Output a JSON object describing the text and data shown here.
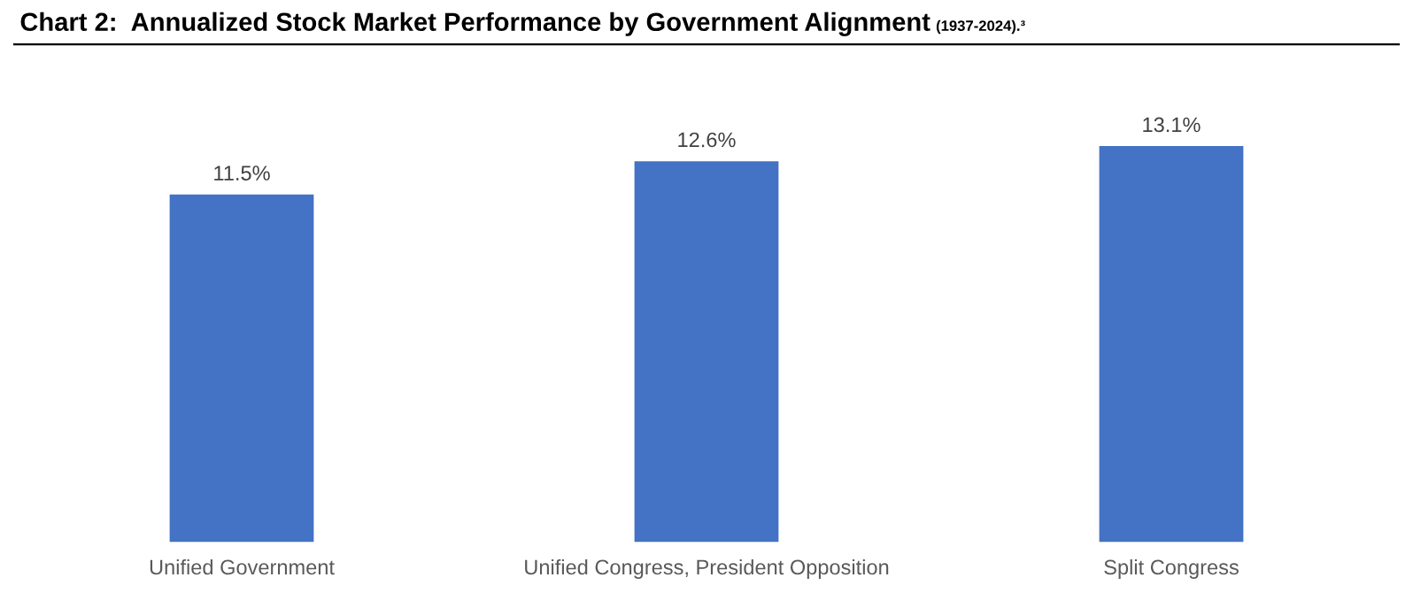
{
  "chart_data": {
    "type": "bar",
    "title": "Chart 2:  Annualized Stock Market Performance by Government Alignment",
    "subtitle": "(1937-2024).³",
    "categories": [
      "Unified Government",
      "Unified Congress, President Opposition",
      "Split Congress"
    ],
    "values": [
      11.5,
      12.6,
      13.1
    ],
    "color": "#4472c4",
    "data_labels": true,
    "value_labels": [
      "11.5%",
      "12.6%",
      "13.1%"
    ],
    "grid": false,
    "legend": false
  }
}
